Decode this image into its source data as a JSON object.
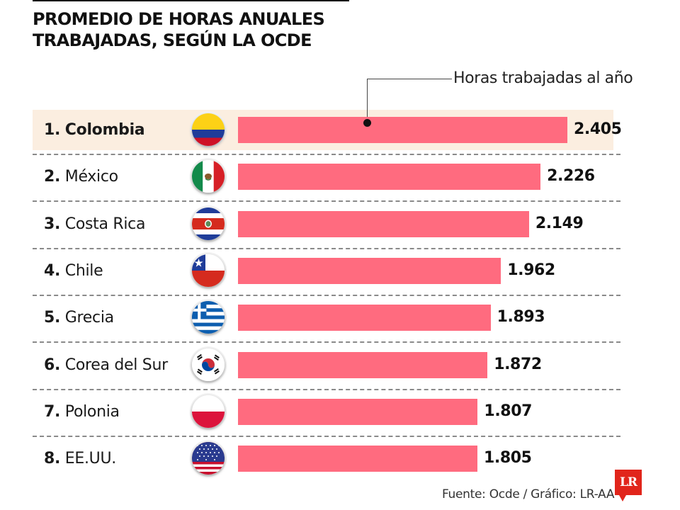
{
  "title": {
    "line1": "PROMEDIO DE HORAS ANUALES",
    "line2": "TRABAJADAS, SEGÚN LA OCDE"
  },
  "legend": {
    "label": "Horas trabajadas al año"
  },
  "footer": {
    "source": "Fuente: Ocde / Gráfico: LR-AA",
    "logo": "LR"
  },
  "colors": {
    "bar": "#ff6b7f",
    "highlight": "#fbeee0",
    "logo": "#e1251b"
  },
  "chart_data": {
    "type": "bar",
    "orientation": "horizontal",
    "title": "PROMEDIO DE HORAS ANUALES TRABAJADAS, SEGÚN LA OCDE",
    "xlabel": "Horas trabajadas al año",
    "ylabel": "",
    "grid": false,
    "highlighted": "Colombia",
    "categories": [
      "Colombia",
      "México",
      "Costa Rica",
      "Chile",
      "Grecia",
      "Corea del Sur",
      "Polonia",
      "EE.UU."
    ],
    "ranks": [
      "1.",
      "2.",
      "3.",
      "4.",
      "5.",
      "6.",
      "7.",
      "8."
    ],
    "values": [
      2405,
      2226,
      2149,
      1962,
      1893,
      1872,
      1807,
      1805
    ],
    "value_labels": [
      "2.405",
      "2.226",
      "2.149",
      "1.962",
      "1.893",
      "1.872",
      "1.807",
      "1.805"
    ],
    "flags": [
      "colombia-flag",
      "mexico-flag",
      "costa-rica-flag",
      "chile-flag",
      "greece-flag",
      "south-korea-flag",
      "poland-flag",
      "usa-flag"
    ]
  }
}
